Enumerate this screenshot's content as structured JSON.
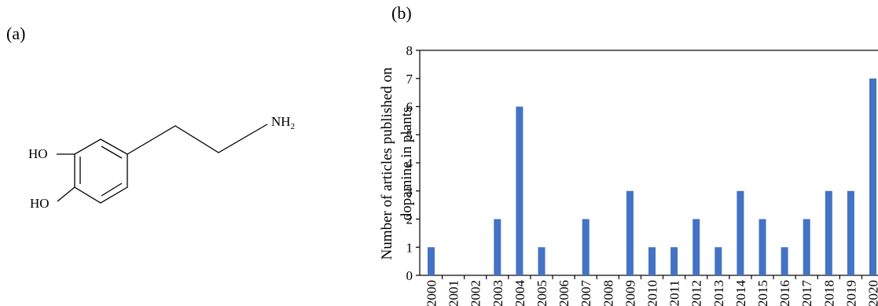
{
  "panels": {
    "a": {
      "label": "(a)"
    },
    "b": {
      "label": "(b)"
    }
  },
  "molecule": {
    "atoms": {
      "oh_top": "HO",
      "oh_bottom": "HO",
      "amine_base": "NH",
      "amine_subscript": "2"
    }
  },
  "chart_data": {
    "type": "bar",
    "title": "",
    "xlabel": "",
    "ylabel": "Number of articles published on dopamine in plants",
    "ylabel_lines": [
      "Number of articles published on",
      "dopamine in plants"
    ],
    "ylim": [
      0,
      8
    ],
    "yticks": [
      0,
      1,
      2,
      3,
      4,
      5,
      6,
      7,
      8
    ],
    "grid": false,
    "bar_color": "#4472c4",
    "categories": [
      "2000",
      "2001",
      "2002",
      "2003",
      "2004",
      "2005",
      "2006",
      "2007",
      "2008",
      "2009",
      "2010",
      "2011",
      "2012",
      "2013",
      "2014",
      "2015",
      "2016",
      "2017",
      "2018",
      "2019",
      "2020"
    ],
    "values": [
      1,
      0,
      0,
      2,
      6,
      1,
      0,
      2,
      0,
      3,
      1,
      1,
      2,
      1,
      3,
      2,
      1,
      2,
      3,
      3,
      7
    ]
  }
}
